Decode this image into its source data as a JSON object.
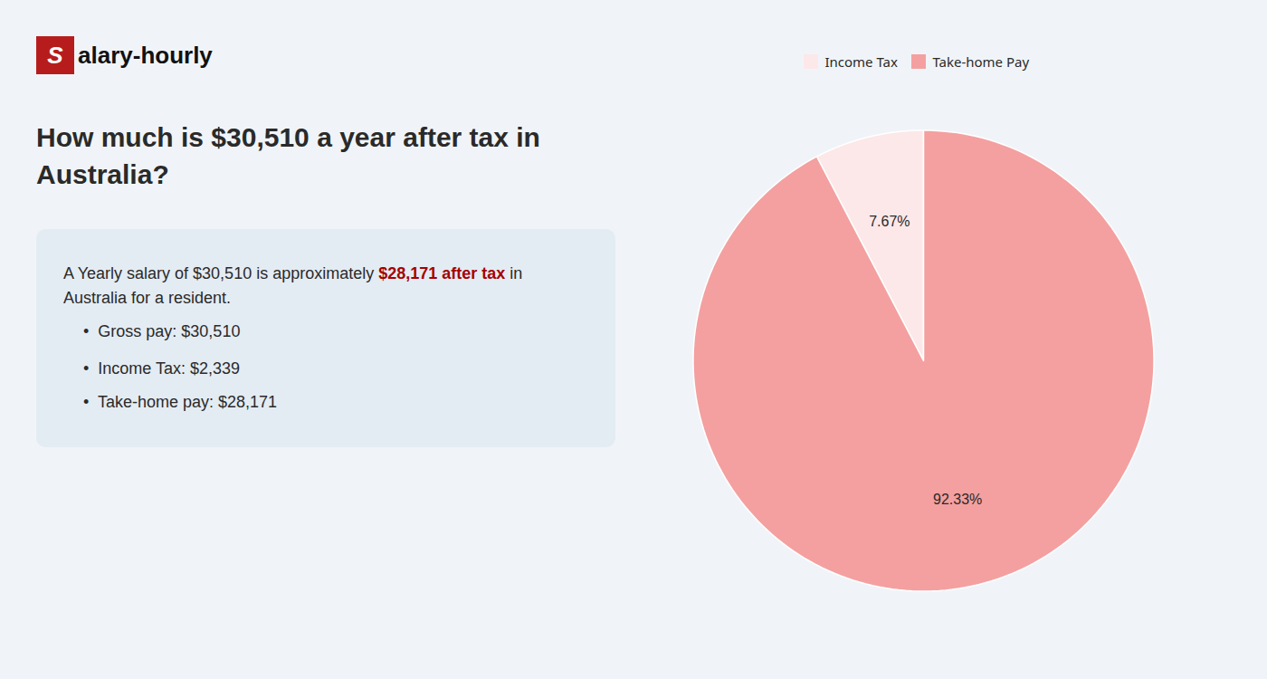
{
  "chart_data": {
    "type": "pie",
    "title": "How much is $30,510 a year after tax in\nAustralia?",
    "categories": [
      "Income Tax",
      "Take-home Pay"
    ],
    "values": [
      7.67,
      92.33
    ],
    "value_labels": [
      "7.67%",
      "92.33%"
    ],
    "data_labels": true,
    "colors": [
      "#fce8e8",
      "#f4a0a0"
    ],
    "legend": "top",
    "background_color": "#f0f4f8",
    "box_color": "#e4ecf3",
    "annotations": [
      [
        {
          "text": "S",
          "color": "#ffffff",
          "background": "#b71c1c"
        },
        {
          "text": "alary-hourly",
          "color": "#111111"
        }
      ],
      [
        {
          "text": "A Yearly salary of $30,510 is approximately ",
          "color": "#2a2a2a"
        },
        {
          "text": "$28,171 after tax",
          "color": "#a50000"
        },
        {
          "text": " in",
          "color": "#2a2a2a"
        }
      ],
      [
        {
          "text": "Australia for a resident.",
          "color": "#2a2a2a"
        }
      ],
      [
        {
          "text": "•  Gross pay: $30,510",
          "color": "#2a2a2a"
        }
      ],
      [
        {
          "text": "•  Income Tax: $2,339",
          "color": "#2a2a2a"
        }
      ],
      [
        {
          "text": "•  Take-home pay: $28,171",
          "color": "#2a2a2a"
        }
      ]
    ]
  }
}
